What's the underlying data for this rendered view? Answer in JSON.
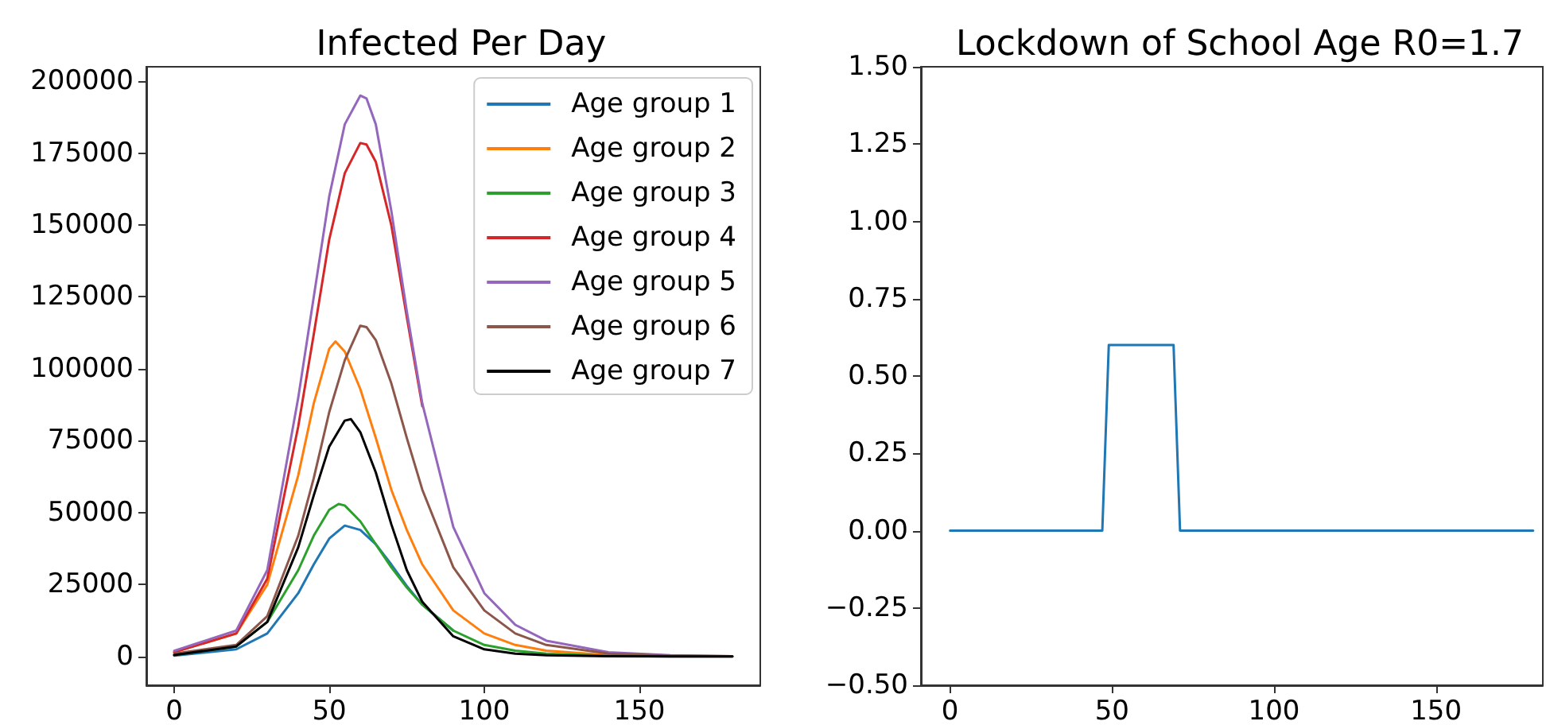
{
  "chart_data": [
    {
      "type": "line",
      "title": "Infected Per Day",
      "xlim": [
        -9,
        189
      ],
      "xticks": [
        0,
        50,
        100,
        150
      ],
      "ylim": [
        -10000,
        205000
      ],
      "yticks": [
        0,
        25000,
        50000,
        75000,
        100000,
        125000,
        150000,
        175000,
        200000
      ],
      "grid": false,
      "legend": "top right",
      "marker": "none",
      "line_style": "solid",
      "series": [
        {
          "name": "Age group 1",
          "color": "#1f77b4",
          "x": [
            0,
            20,
            30,
            40,
            45,
            50,
            55,
            60,
            65,
            70,
            75,
            80,
            90
          ],
          "values": [
            300,
            2500,
            8000,
            22000,
            32000,
            41000,
            45500,
            44000,
            39000,
            32000,
            24500,
            18000,
            9000
          ]
        },
        {
          "name": "Age group 2",
          "color": "#ff7f0e",
          "x": [
            0,
            20,
            30,
            40,
            45,
            50,
            52,
            55,
            60,
            65,
            70,
            75,
            80,
            90,
            100,
            110,
            120,
            140,
            160,
            180
          ],
          "values": [
            1500,
            8000,
            25000,
            63000,
            88000,
            107000,
            109500,
            106000,
            93000,
            76000,
            58000,
            44000,
            32000,
            16000,
            8000,
            4000,
            2000,
            500,
            100,
            0
          ]
        },
        {
          "name": "Age group 3",
          "color": "#2ca02c",
          "x": [
            0,
            20,
            30,
            40,
            45,
            50,
            53,
            55,
            60,
            65,
            70,
            75,
            80,
            90,
            100,
            110,
            120,
            140,
            160,
            180
          ],
          "values": [
            500,
            3500,
            12000,
            30000,
            42000,
            51000,
            53000,
            52500,
            47000,
            39000,
            31000,
            24000,
            18000,
            9000,
            4000,
            2000,
            1000,
            200,
            0,
            0
          ]
        },
        {
          "name": "Age group 4",
          "color": "#d62728",
          "x": [
            0,
            20,
            30,
            40,
            45,
            50,
            55,
            60,
            62,
            65,
            70,
            75,
            80
          ],
          "values": [
            1500,
            8000,
            27000,
            80000,
            112000,
            145000,
            168000,
            178500,
            178000,
            172000,
            150000,
            118000,
            87000
          ]
        },
        {
          "name": "Age group 5",
          "color": "#9467bd",
          "x": [
            0,
            20,
            30,
            40,
            45,
            50,
            55,
            60,
            62,
            65,
            70,
            75,
            80,
            90,
            100,
            110,
            120,
            140,
            160,
            180
          ],
          "values": [
            2000,
            9000,
            30000,
            90000,
            125000,
            160000,
            185000,
            195000,
            194000,
            185000,
            155000,
            120000,
            88000,
            45000,
            22000,
            11000,
            5500,
            1500,
            400,
            100
          ]
        },
        {
          "name": "Age group 6",
          "color": "#8c564b",
          "x": [
            0,
            20,
            30,
            40,
            45,
            50,
            55,
            60,
            62,
            65,
            70,
            75,
            80,
            90,
            100,
            110,
            120,
            140,
            160,
            180
          ],
          "values": [
            1000,
            4000,
            14000,
            42000,
            62000,
            85000,
            103000,
            115000,
            114500,
            110000,
            95000,
            76000,
            58000,
            31000,
            16000,
            8000,
            4000,
            1000,
            300,
            100
          ]
        },
        {
          "name": "Age group 7",
          "color": "#000000",
          "x": [
            0,
            20,
            30,
            40,
            45,
            50,
            55,
            57,
            60,
            65,
            70,
            75,
            80,
            90,
            100,
            110,
            120,
            140,
            160,
            180
          ],
          "values": [
            500,
            3500,
            12000,
            38000,
            56000,
            73000,
            82000,
            82500,
            78000,
            64000,
            46000,
            30000,
            19000,
            7000,
            2500,
            1000,
            400,
            100,
            0,
            0
          ]
        }
      ]
    },
    {
      "type": "line",
      "title": "Lockdown of School Age R0=1.7",
      "xlim": [
        -9,
        183
      ],
      "xticks": [
        0,
        50,
        100,
        150
      ],
      "ylim": [
        -0.5,
        1.5
      ],
      "yticks": [
        {
          "value": -0.5,
          "label": "−0.50"
        },
        {
          "value": -0.25,
          "label": "−0.25"
        },
        {
          "value": 0,
          "label": "0.00"
        },
        {
          "value": 0.25,
          "label": "0.25"
        },
        {
          "value": 0.5,
          "label": "0.50"
        },
        {
          "value": 0.75,
          "label": "0.75"
        },
        {
          "value": 1,
          "label": "1.00"
        },
        {
          "value": 1.25,
          "label": "1.25"
        },
        {
          "value": 1.5,
          "label": "1.50"
        }
      ],
      "grid": false,
      "marker": "none",
      "line_style": "solid",
      "series": [
        {
          "color": "#1f77b4",
          "x": [
            0,
            47,
            49,
            69,
            71,
            180
          ],
          "values": [
            0,
            0,
            0.6,
            0.6,
            0,
            0
          ]
        }
      ]
    }
  ]
}
